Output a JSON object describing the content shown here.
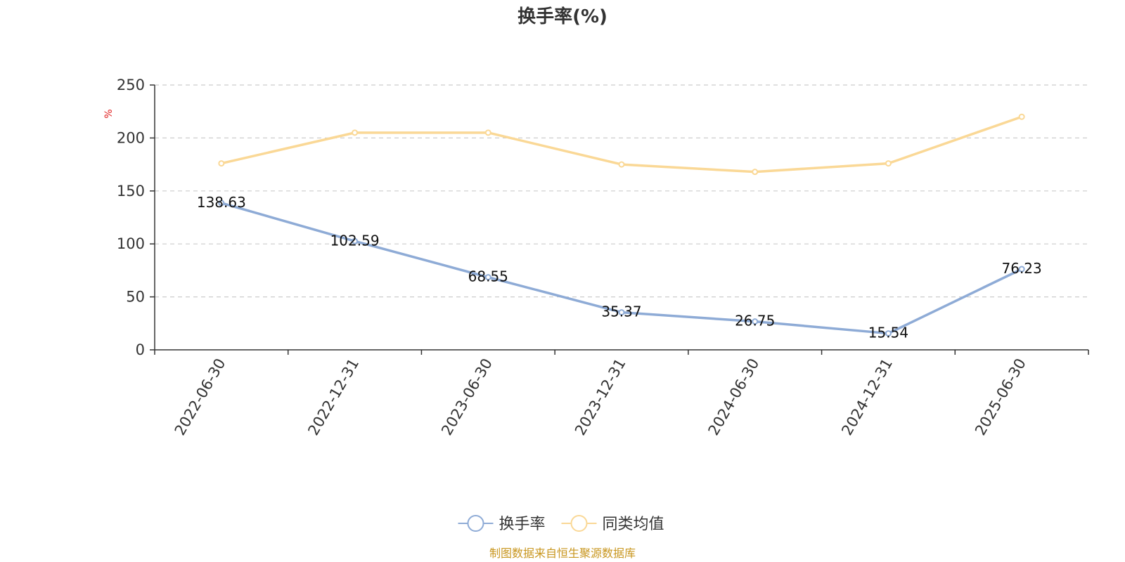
{
  "chart_data": {
    "type": "line",
    "title": "换手率(%)",
    "ylabel": "%",
    "categories": [
      "2022-06-30",
      "2022-12-31",
      "2023-06-30",
      "2023-12-31",
      "2024-06-30",
      "2024-12-31",
      "2025-06-30"
    ],
    "ylim": [
      0,
      250
    ],
    "yticks": [
      0,
      50,
      100,
      150,
      200,
      250
    ],
    "grid": true,
    "series": [
      {
        "name": "换手率",
        "values": [
          138.63,
          102.59,
          68.55,
          35.37,
          26.75,
          15.54,
          76.23
        ],
        "labels": [
          "138.63",
          "102.59",
          "68.55",
          "35.37",
          "26.75",
          "15.54",
          "76.23"
        ],
        "color": "#8eabd6"
      },
      {
        "name": "同类均值",
        "values": [
          176,
          205,
          205,
          175,
          168,
          176,
          220
        ],
        "color": "#fad896"
      }
    ],
    "legend_position": "bottom-center"
  },
  "source": "制图数据来自恒生聚源数据库",
  "colors": {
    "unit_label": "#e02020",
    "source": "#c8961e",
    "axis": "#333333",
    "grid": "#cccccc"
  }
}
